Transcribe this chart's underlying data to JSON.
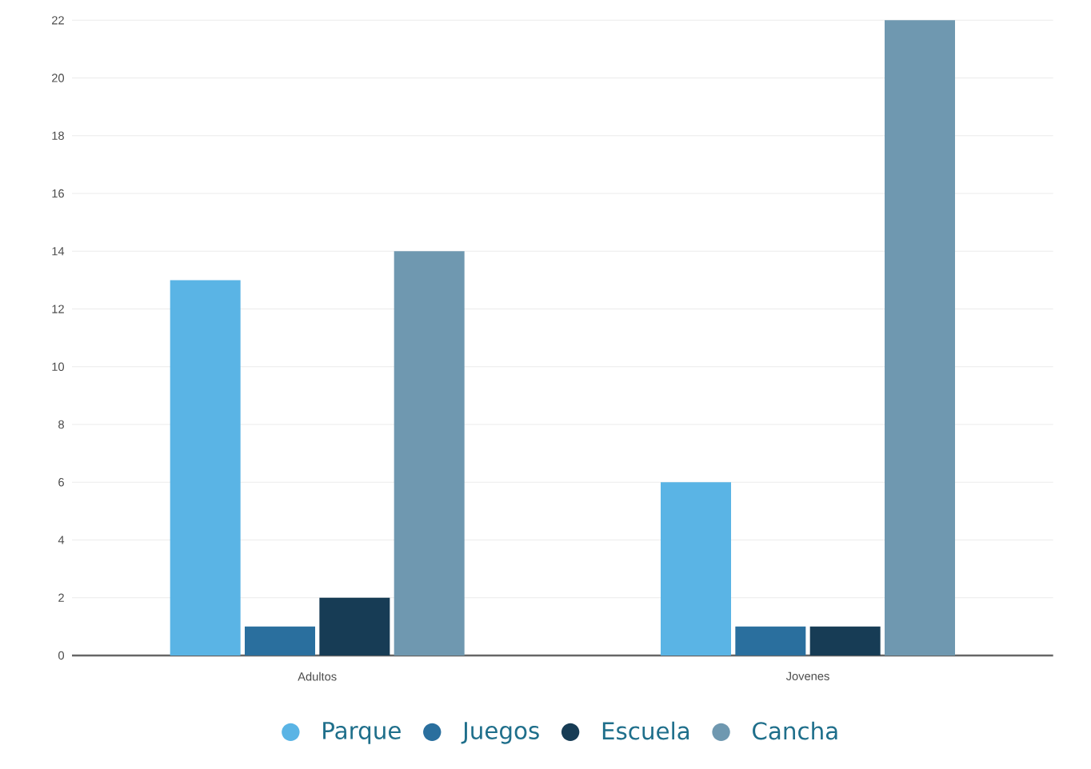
{
  "chart_data": {
    "type": "bar",
    "categories": [
      "Adultos",
      "Jovenes"
    ],
    "series": [
      {
        "name": "Parque",
        "color": "#5ab4e5",
        "values": [
          13,
          6
        ]
      },
      {
        "name": "Juegos",
        "color": "#2a6f9e",
        "values": [
          1,
          1
        ]
      },
      {
        "name": "Escuela",
        "color": "#173c55",
        "values": [
          2,
          1
        ]
      },
      {
        "name": "Cancha",
        "color": "#6f98b0",
        "values": [
          14,
          22
        ]
      }
    ],
    "ylim": [
      0,
      22
    ],
    "yticks": [
      0,
      2,
      4,
      6,
      8,
      10,
      12,
      14,
      16,
      18,
      20,
      22
    ],
    "grid": "y",
    "legend": "bottom",
    "marker": "circle"
  }
}
